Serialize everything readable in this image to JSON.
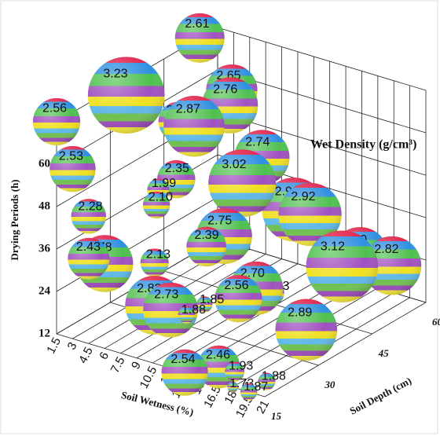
{
  "chart_data": {
    "type": "bubble3d",
    "annotation": "Wet Density (g/cm³)",
    "y_label": "Drying Periods (h)",
    "x_label": "Soil Wetness (%)",
    "z_label": "Soil Depth (cm)",
    "xlim": [
      1.5,
      21
    ],
    "xticks": [
      1.5,
      3,
      4.5,
      6,
      7.5,
      9,
      10.5,
      12,
      13.5,
      15,
      16.5,
      18,
      19.5,
      21
    ],
    "ylim": [
      12,
      72
    ],
    "yticks": [
      12,
      24,
      36,
      48,
      60,
      72
    ],
    "zlim": [
      15,
      60
    ],
    "zticks": [
      15,
      30,
      45,
      60
    ],
    "x": [
      3,
      1.5,
      4.5,
      4.5,
      1.5,
      6,
      6,
      3,
      6,
      9,
      6,
      4.5,
      7.5,
      10.5,
      6,
      10.5,
      4.5,
      9,
      10.5,
      12,
      13.5,
      13.5,
      12,
      16.5,
      16.5,
      19.5,
      16.5,
      15,
      13.5,
      9,
      10.5,
      12,
      13.5,
      15,
      16.5,
      18,
      19.5,
      19.5
    ],
    "z": [
      30,
      55,
      40,
      55,
      15,
      50,
      40,
      15,
      35,
      50,
      30,
      15,
      25,
      40,
      15,
      35,
      15,
      20,
      30,
      50,
      50,
      30,
      25,
      55,
      50,
      55,
      40,
      35,
      35,
      20,
      20,
      20,
      15,
      20,
      20,
      15,
      15,
      20
    ],
    "y": [
      72,
      72,
      60,
      60,
      72,
      60,
      60,
      60,
      48,
      48,
      48,
      48,
      48,
      48,
      36,
      36,
      36,
      36,
      36,
      36,
      36,
      24,
      24,
      24,
      24,
      24,
      12,
      24,
      24,
      24,
      24,
      24,
      12,
      12,
      12,
      12,
      12,
      12
    ],
    "values": [
      3.23,
      2.61,
      2.38,
      2.65,
      2.56,
      2.76,
      2.87,
      2.53,
      2.35,
      2.74,
      1.99,
      2.28,
      2.1,
      3.02,
      2.78,
      2.75,
      2.43,
      2.13,
      2.39,
      2.94,
      2.92,
      2.56,
      1.85,
      2.8,
      3.12,
      2.82,
      2.89,
      2.03,
      2.7,
      2.82,
      2.73,
      1.88,
      2.54,
      2.46,
      1.93,
      1.73,
      1.87,
      1.88
    ],
    "value_labels": [
      "3.23",
      "2.61",
      "2.38",
      "2.65",
      "2.56",
      "2.76",
      "2.87",
      "2.53",
      "2.35",
      "2.74",
      "1.99",
      "2.28",
      "2.10",
      "3.02",
      "2.78",
      "2.75",
      "2.43",
      "2.13",
      "2.39",
      "2.94",
      "2.92",
      "2.56",
      "1.85",
      "2.80",
      "3.12",
      "2.82",
      "2.89",
      "2.03",
      "2.70",
      "2.82",
      "2.73",
      "1.88",
      "2.54",
      "2.46",
      "1.93",
      "1.73",
      "1.87",
      "1.88"
    ]
  }
}
